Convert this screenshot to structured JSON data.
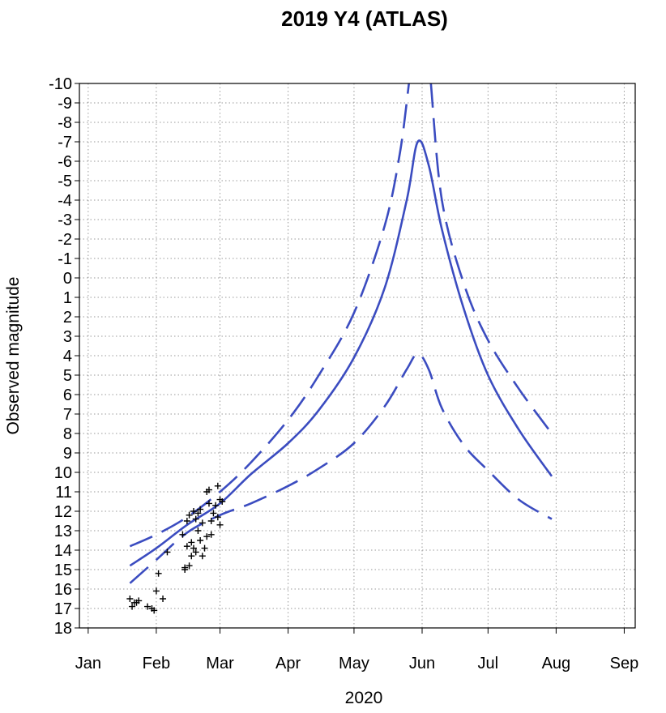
{
  "chart_data": {
    "type": "line",
    "title": "2019 Y4 (ATLAS)",
    "xlabel": "2020",
    "ylabel": "Observed magnitude",
    "x_ticks": [
      "Jan",
      "Feb",
      "Mar",
      "Apr",
      "May",
      "Jun",
      "Jul",
      "Aug",
      "Sep"
    ],
    "x_tick_dates": [
      "2020-01-01",
      "2020-02-01",
      "2020-03-01",
      "2020-04-01",
      "2020-05-01",
      "2020-06-01",
      "2020-07-01",
      "2020-08-01",
      "2020-09-01"
    ],
    "y_ticks": [
      "-10",
      "-9",
      "-8",
      "-7",
      "-6",
      "-5",
      "-4",
      "-3",
      "-2",
      "-1",
      "0",
      "1",
      "2",
      "3",
      "4",
      "5",
      "6",
      "7",
      "8",
      "9",
      "10",
      "11",
      "12",
      "13",
      "14",
      "15",
      "16",
      "17",
      "18"
    ],
    "xlim": [
      "2019-12-28",
      "2020-09-06"
    ],
    "ylim": [
      18,
      -10
    ],
    "y_inverted": true,
    "grid": true,
    "colors": {
      "curve": "#3b4cc0",
      "points": "#000000"
    },
    "series": [
      {
        "style": "dashed",
        "points": [
          [
            "2020-01-20",
            13.8
          ],
          [
            "2020-02-01",
            13.2
          ],
          [
            "2020-02-15",
            12.3
          ],
          [
            "2020-03-01",
            11.0
          ],
          [
            "2020-03-15",
            9.5
          ],
          [
            "2020-04-01",
            7.3
          ],
          [
            "2020-04-15",
            5.0
          ],
          [
            "2020-05-01",
            1.8
          ],
          [
            "2020-05-15",
            -2.7
          ],
          [
            "2020-05-22",
            -6.5
          ],
          [
            "2020-05-26",
            -10.0
          ]
        ]
      },
      {
        "style": "dashed",
        "points": [
          [
            "2020-06-05",
            -10.0
          ],
          [
            "2020-06-10",
            -4.0
          ],
          [
            "2020-06-20",
            0.3
          ],
          [
            "2020-07-01",
            3.2
          ],
          [
            "2020-07-15",
            5.7
          ],
          [
            "2020-07-30",
            8.0
          ]
        ]
      },
      {
        "style": "solid",
        "points": [
          [
            "2020-01-20",
            14.8
          ],
          [
            "2020-02-01",
            13.9
          ],
          [
            "2020-02-15",
            12.7
          ],
          [
            "2020-03-01",
            11.6
          ],
          [
            "2020-03-15",
            10.1
          ],
          [
            "2020-04-01",
            8.5
          ],
          [
            "2020-04-15",
            6.8
          ],
          [
            "2020-05-01",
            4.1
          ],
          [
            "2020-05-15",
            0.5
          ],
          [
            "2020-05-25",
            -4.0
          ],
          [
            "2020-05-30",
            -7.0
          ],
          [
            "2020-06-04",
            -5.8
          ],
          [
            "2020-06-10",
            -2.5
          ],
          [
            "2020-06-20",
            1.6
          ],
          [
            "2020-07-01",
            5.0
          ],
          [
            "2020-07-15",
            7.8
          ],
          [
            "2020-07-30",
            10.2
          ]
        ]
      },
      {
        "style": "dashed",
        "points": [
          [
            "2020-01-20",
            15.7
          ],
          [
            "2020-02-01",
            14.5
          ],
          [
            "2020-02-15",
            13.1
          ],
          [
            "2020-03-01",
            12.2
          ],
          [
            "2020-03-15",
            11.6
          ],
          [
            "2020-04-01",
            10.7
          ],
          [
            "2020-04-15",
            9.8
          ],
          [
            "2020-05-01",
            8.5
          ],
          [
            "2020-05-15",
            6.6
          ],
          [
            "2020-05-25",
            4.7
          ],
          [
            "2020-05-30",
            3.9
          ],
          [
            "2020-06-04",
            4.7
          ],
          [
            "2020-06-10",
            6.7
          ],
          [
            "2020-06-20",
            8.6
          ],
          [
            "2020-07-01",
            9.9
          ],
          [
            "2020-07-15",
            11.4
          ],
          [
            "2020-07-30",
            12.4
          ]
        ]
      }
    ],
    "observations": [
      [
        "2020-01-20",
        16.5
      ],
      [
        "2020-01-21",
        16.9
      ],
      [
        "2020-01-22",
        16.7
      ],
      [
        "2020-01-23",
        16.7
      ],
      [
        "2020-01-24",
        16.6
      ],
      [
        "2020-01-28",
        16.9
      ],
      [
        "2020-01-30",
        17.0
      ],
      [
        "2020-01-31",
        17.1
      ],
      [
        "2020-02-01",
        16.1
      ],
      [
        "2020-02-02",
        15.2
      ],
      [
        "2020-02-04",
        16.5
      ],
      [
        "2020-02-06",
        14.1
      ],
      [
        "2020-02-13",
        13.2
      ],
      [
        "2020-02-14",
        14.9
      ],
      [
        "2020-02-14",
        15.0
      ],
      [
        "2020-02-15",
        13.8
      ],
      [
        "2020-02-15",
        12.5
      ],
      [
        "2020-02-16",
        14.8
      ],
      [
        "2020-02-16",
        12.2
      ],
      [
        "2020-02-17",
        14.3
      ],
      [
        "2020-02-17",
        13.6
      ],
      [
        "2020-02-18",
        12.0
      ],
      [
        "2020-02-18",
        13.9
      ],
      [
        "2020-02-19",
        14.1
      ],
      [
        "2020-02-19",
        12.4
      ],
      [
        "2020-02-20",
        12.1
      ],
      [
        "2020-02-20",
        13.0
      ],
      [
        "2020-02-21",
        11.9
      ],
      [
        "2020-02-21",
        13.5
      ],
      [
        "2020-02-22",
        14.3
      ],
      [
        "2020-02-22",
        12.6
      ],
      [
        "2020-02-23",
        13.9
      ],
      [
        "2020-02-24",
        11.0
      ],
      [
        "2020-02-24",
        13.3
      ],
      [
        "2020-02-25",
        10.9
      ],
      [
        "2020-02-25",
        11.6
      ],
      [
        "2020-02-26",
        13.2
      ],
      [
        "2020-02-26",
        12.5
      ],
      [
        "2020-02-27",
        12.1
      ],
      [
        "2020-02-28",
        11.7
      ],
      [
        "2020-02-29",
        10.7
      ],
      [
        "2020-02-29",
        12.3
      ],
      [
        "2020-03-01",
        11.4
      ],
      [
        "2020-03-01",
        12.7
      ],
      [
        "2020-03-02",
        11.5
      ]
    ]
  }
}
